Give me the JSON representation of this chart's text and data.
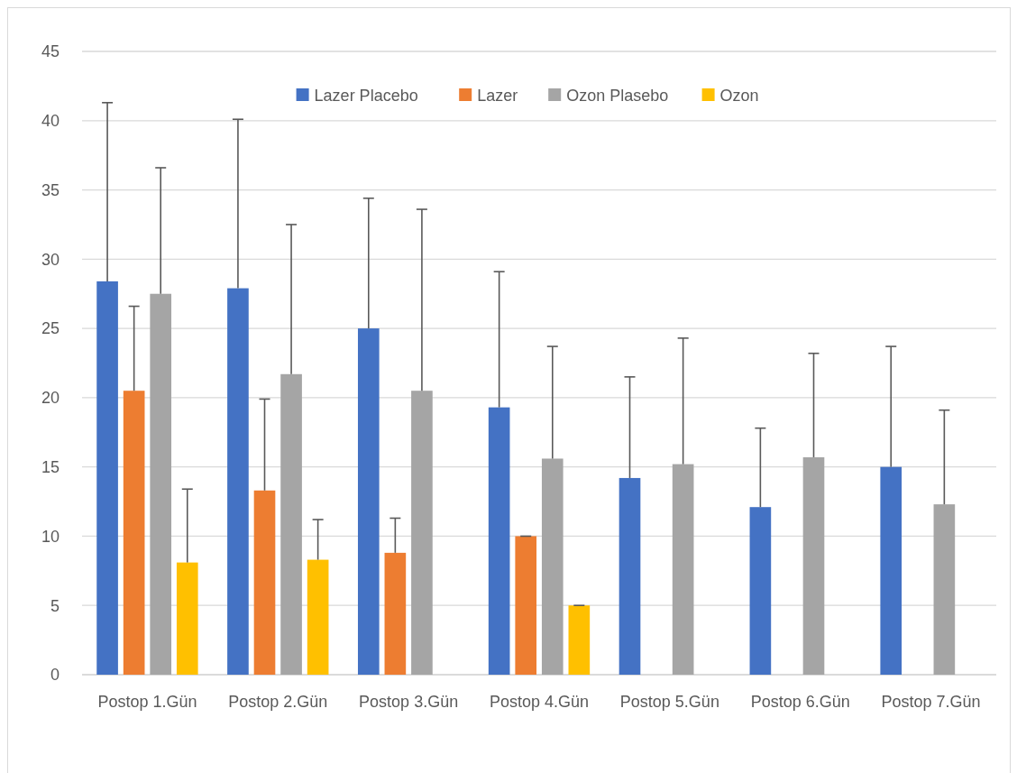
{
  "chart_data": {
    "type": "bar",
    "categories": [
      "Postop 1.Gün",
      "Postop 2.Gün",
      "Postop 3.Gün",
      "Postop 4.Gün",
      "Postop 5.Gün",
      "Postop 6.Gün",
      "Postop 7.Gün"
    ],
    "series": [
      {
        "name": "Lazer Placebo",
        "color": "#4472c4",
        "values": [
          28.4,
          27.9,
          25.0,
          19.3,
          14.2,
          12.1,
          15.0
        ],
        "errors": [
          [
            28.4,
            41.3
          ],
          [
            27.9,
            40.1
          ],
          [
            25.0,
            34.4
          ],
          [
            19.3,
            29.1
          ],
          [
            14.2,
            21.5
          ],
          [
            12.1,
            17.8
          ],
          [
            15.0,
            23.7
          ]
        ]
      },
      {
        "name": "Lazer",
        "color": "#ed7d31",
        "values": [
          20.5,
          13.3,
          8.8,
          10.0,
          null,
          null,
          null
        ],
        "errors": [
          [
            20.5,
            26.6
          ],
          [
            13.3,
            19.9
          ],
          [
            8.8,
            11.3
          ],
          [
            10.0,
            10.0
          ],
          null,
          null,
          null
        ]
      },
      {
        "name": "Ozon Plasebo",
        "color": "#a5a5a5",
        "values": [
          27.5,
          21.7,
          20.5,
          15.6,
          15.2,
          15.7,
          12.3
        ],
        "errors": [
          [
            27.5,
            36.6
          ],
          [
            21.7,
            32.5
          ],
          [
            20.5,
            33.6
          ],
          [
            15.6,
            23.7
          ],
          [
            15.2,
            24.3
          ],
          [
            15.7,
            23.2
          ],
          [
            12.3,
            19.1
          ]
        ]
      },
      {
        "name": "Ozon",
        "color": "#ffc000",
        "values": [
          8.1,
          8.3,
          null,
          5.0,
          null,
          null,
          null
        ],
        "errors": [
          [
            8.1,
            13.4
          ],
          [
            8.3,
            11.2
          ],
          null,
          [
            5.0,
            5.0
          ],
          null,
          null,
          null
        ]
      }
    ],
    "ylim": [
      0,
      45
    ],
    "yticks": [
      0,
      5,
      10,
      15,
      20,
      25,
      30,
      35,
      40,
      45
    ],
    "grid": "y",
    "legend": "top"
  }
}
